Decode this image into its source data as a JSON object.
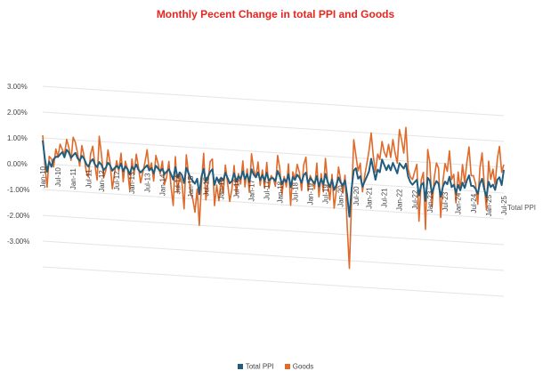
{
  "chart_data": {
    "type": "line",
    "title": "Monthly Pecent Change in total PPI and Goods",
    "y_tick_labels": [
      "3.00%",
      "2.00%",
      "1.00%",
      "0.00%",
      "-1.00%",
      "-2.00%",
      "-3.00%"
    ],
    "y_ticks": [
      3,
      2,
      1,
      0,
      -1,
      -2,
      -3
    ],
    "ylim": [
      -4,
      3
    ],
    "x_tick_labels": [
      "Jan-10",
      "Jul-10",
      "Jan-11",
      "Jul-11",
      "Jan-12",
      "Jul-12",
      "Jan-13",
      "Jul-13",
      "Jan-14",
      "Jul-14",
      "Jan-15",
      "Jul-15",
      "Jan-16",
      "Jul-16",
      "Jan-17",
      "Jul-17",
      "Jan-18",
      "Jul-18",
      "Jan-19",
      "Jul-19",
      "Jan-20",
      "Jul-20",
      "Jan-21",
      "Jul-21",
      "Jan-22",
      "Jul-22",
      "Jan-23",
      "Jul-23",
      "Jan-24",
      "Jul-24",
      "Jan-25",
      "Jul-25"
    ],
    "x_start": "Jan-10",
    "x_end": "Jul-25",
    "grid": true,
    "legend_position": "bottom",
    "annotation": "Total PPI",
    "series": [
      {
        "name": "Total PPI",
        "color": "#1f5e7e",
        "values": [
          0.9,
          0.2,
          -0.3,
          0.1,
          -0.1,
          0.2,
          0.3,
          0.3,
          0.4,
          0.5,
          0.3,
          0.6,
          0.5,
          0.3,
          0.4,
          0.5,
          0.3,
          0.2,
          0.4,
          0.3,
          0.1,
          0.0,
          0.2,
          0.3,
          0.1,
          0.0,
          0.2,
          0.1,
          -0.1,
          0.0,
          0.2,
          0.1,
          -0.1,
          0.0,
          0.1,
          0.0,
          0.2,
          -0.1,
          0.1,
          0.0,
          -0.2,
          0.1,
          0.0,
          0.2,
          0.0,
          -0.1,
          0.0,
          0.1,
          0.2,
          0.0,
          0.1,
          -0.1,
          0.2,
          0.1,
          0.0,
          0.1,
          -0.1,
          0.0,
          0.1,
          -0.1,
          -0.3,
          0.2,
          -0.2,
          0.0,
          -0.1,
          -0.4,
          0.2,
          0.0,
          -0.2,
          -0.3,
          -0.4,
          -0.2,
          -0.8,
          -0.1,
          0.2,
          -0.3,
          -0.1,
          0.1,
          0.2,
          -0.4,
          -0.1,
          -0.3,
          -0.1,
          -0.2,
          0.1,
          -0.1,
          -0.3,
          -0.2,
          0.1,
          -0.2,
          0.0,
          -0.1,
          0.2,
          -0.1,
          0.1,
          -0.2,
          0.3,
          0.1,
          0.0,
          0.2,
          -0.1,
          0.1,
          -0.1,
          0.2,
          -0.1,
          0.0,
          0.0,
          -0.1,
          0.3,
          0.1,
          -0.2,
          0.0,
          -0.1,
          0.2,
          -0.3,
          0.1,
          0.0,
          0.2,
          0.1,
          -0.1,
          0.2,
          0.3,
          -0.1,
          0.1,
          0.0,
          -0.1,
          0.2,
          -0.2,
          0.1,
          -0.1,
          0.3,
          0.0,
          -0.2,
          0.1,
          -0.3,
          -0.1,
          0.2,
          0.0,
          -0.1,
          0.1,
          -0.5,
          -1.3,
          -0.2,
          0.5,
          0.6,
          0.2,
          0.3,
          -0.1,
          0.1,
          0.3,
          0.5,
          1.0,
          0.6,
          0.2,
          0.6,
          0.5,
          1.0,
          0.8,
          0.6,
          0.8,
          0.6,
          0.9,
          0.7,
          0.5,
          0.9,
          0.8,
          0.7,
          0.9,
          0.4,
          0.2,
          0.1,
          0.2,
          0.3,
          -0.3,
          0.1,
          0.2,
          -0.5,
          0.4,
          0.3,
          -0.2,
          0.1,
          0.3,
          0.2,
          -0.3,
          0.1,
          0.3,
          0.2,
          0.5,
          0.1,
          0.2,
          -0.1,
          0.2,
          0.0,
          0.3,
          0.1,
          0.4,
          0.6,
          0.2,
          0.2,
          0.1,
          -0.1,
          0.3,
          0.5,
          0.1,
          -0.2,
          0.4,
          0.2,
          0.3,
          0.1,
          0.5,
          0.6,
          0.3,
          0.9
        ]
      },
      {
        "name": "Goods",
        "color": "#e06a2a",
        "values": [
          1.1,
          0.0,
          -0.9,
          0.3,
          0.2,
          -0.1,
          0.6,
          0.3,
          0.8,
          0.6,
          0.4,
          1.0,
          0.7,
          0.2,
          1.1,
          0.9,
          0.5,
          0.0,
          0.8,
          0.4,
          -0.2,
          -0.4,
          0.5,
          0.8,
          0.1,
          -0.5,
          1.2,
          0.5,
          -0.4,
          -0.1,
          0.7,
          0.2,
          -0.8,
          -0.2,
          0.3,
          -0.1,
          0.6,
          -0.5,
          0.3,
          0.0,
          -0.8,
          0.4,
          -0.2,
          0.6,
          0.1,
          -0.5,
          -0.1,
          0.3,
          0.8,
          0.0,
          0.3,
          -0.4,
          0.6,
          0.3,
          -0.1,
          0.4,
          -0.5,
          -0.2,
          0.4,
          -0.6,
          -1.3,
          0.6,
          -0.8,
          -0.1,
          -0.4,
          -1.4,
          0.7,
          0.0,
          -0.8,
          -1.0,
          -1.5,
          -0.6,
          -2.0,
          -0.4,
          0.8,
          -1.0,
          -0.3,
          0.5,
          0.6,
          -1.2,
          -0.4,
          -1.0,
          -0.2,
          -0.7,
          0.4,
          -0.3,
          -1.0,
          -0.5,
          0.4,
          -0.7,
          0.1,
          -0.3,
          0.6,
          -0.4,
          0.3,
          -0.6,
          0.9,
          0.3,
          0.0,
          0.6,
          -0.3,
          0.3,
          -0.4,
          0.6,
          -0.4,
          0.1,
          0.0,
          -0.3,
          0.9,
          0.4,
          -0.6,
          0.1,
          -0.3,
          0.6,
          -1.0,
          0.3,
          0.0,
          0.6,
          0.3,
          -0.4,
          0.6,
          0.9,
          -0.4,
          0.2,
          0.0,
          -0.3,
          0.7,
          -0.6,
          0.3,
          -0.4,
          0.9,
          0.0,
          -0.7,
          0.3,
          -1.0,
          -0.3,
          0.6,
          0.1,
          -0.4,
          0.3,
          -1.7,
          -3.3,
          -0.6,
          1.7,
          1.1,
          0.5,
          0.8,
          -0.3,
          0.3,
          0.8,
          1.3,
          2.0,
          1.1,
          0.5,
          1.2,
          1.0,
          1.7,
          1.3,
          1.1,
          1.6,
          1.1,
          1.8,
          1.3,
          0.9,
          2.2,
          1.8,
          1.3,
          2.3,
          0.7,
          0.4,
          0.3,
          0.6,
          0.9,
          -1.3,
          0.3,
          0.6,
          -1.6,
          1.5,
          1.0,
          -0.7,
          0.4,
          1.0,
          0.8,
          -1.1,
          0.3,
          1.0,
          0.7,
          1.5,
          0.4,
          0.6,
          -0.5,
          0.7,
          0.0,
          1.0,
          0.3,
          1.1,
          1.7,
          0.6,
          0.6,
          0.3,
          -0.5,
          0.9,
          1.5,
          0.3,
          -0.7,
          1.2,
          0.5,
          0.9,
          0.3,
          1.3,
          1.8,
          0.8,
          1.1
        ]
      }
    ]
  }
}
